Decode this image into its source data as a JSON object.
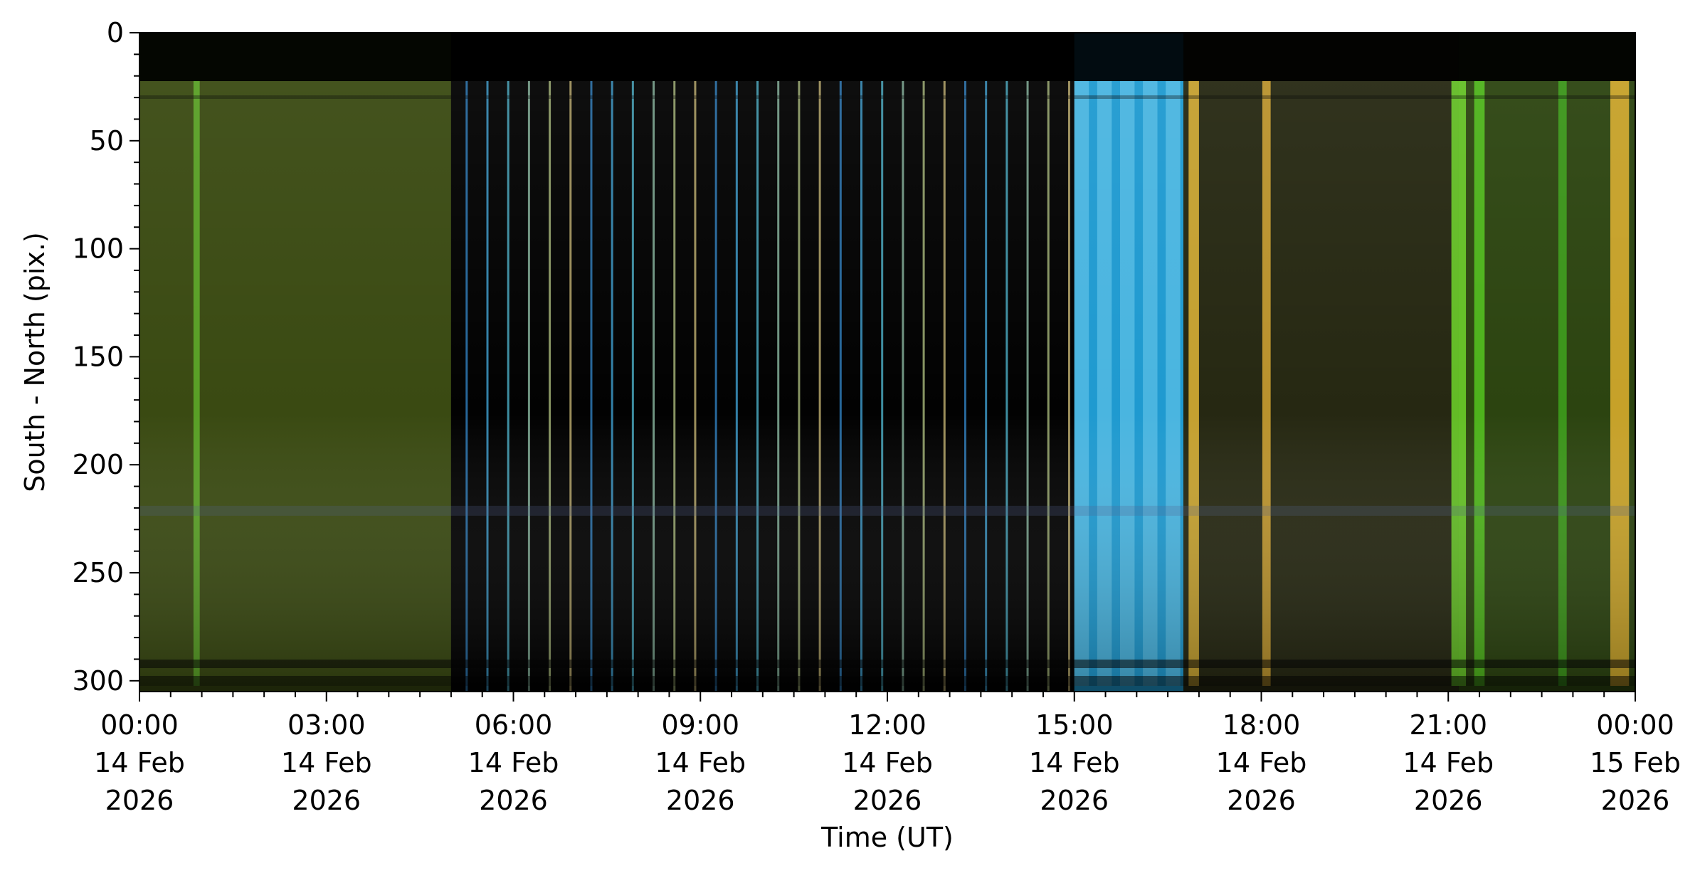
{
  "chart_data": {
    "type": "heatmap",
    "title": "",
    "xlabel": "Time (UT)",
    "ylabel": "South - North (pix.)",
    "ylim": [
      305,
      0
    ],
    "xlim": [
      "2026-02-14T00:00",
      "2026-02-15T00:00"
    ],
    "y_ticks": [
      0,
      50,
      100,
      150,
      200,
      250,
      300
    ],
    "x_ticks": [
      {
        "time": "2026-02-14T00:00",
        "lines": [
          "00:00",
          "14 Feb",
          "2026"
        ]
      },
      {
        "time": "2026-02-14T03:00",
        "lines": [
          "03:00",
          "14 Feb",
          "2026"
        ]
      },
      {
        "time": "2026-02-14T06:00",
        "lines": [
          "06:00",
          "14 Feb",
          "2026"
        ]
      },
      {
        "time": "2026-02-14T09:00",
        "lines": [
          "09:00",
          "14 Feb",
          "2026"
        ]
      },
      {
        "time": "2026-02-14T12:00",
        "lines": [
          "12:00",
          "14 Feb",
          "2026"
        ]
      },
      {
        "time": "2026-02-14T15:00",
        "lines": [
          "15:00",
          "14 Feb",
          "2026"
        ]
      },
      {
        "time": "2026-02-14T18:00",
        "lines": [
          "18:00",
          "14 Feb",
          "2026"
        ]
      },
      {
        "time": "2026-02-14T21:00",
        "lines": [
          "21:00",
          "14 Feb",
          "2026"
        ]
      },
      {
        "time": "2026-02-15T00:00",
        "lines": [
          "00:00",
          "15 Feb",
          "2026"
        ]
      }
    ],
    "x_minor_tick_minutes": 30,
    "y_minor_tick_step": 10,
    "segments": [
      {
        "start": "00:00",
        "end": "05:00",
        "color": "#3a4a12",
        "description": "dim green/yellow aurora"
      },
      {
        "start": "05:00",
        "end": "15:00",
        "color": "#020202",
        "description": "dark with periodic bright streaks"
      },
      {
        "start": "15:00",
        "end": "16:45",
        "color": "#1f9ad0",
        "description": "bright cyan twilight"
      },
      {
        "start": "16:45",
        "end": "21:10",
        "color": "#262812",
        "description": "dim with yellow bands"
      },
      {
        "start": "21:10",
        "end": "24:00",
        "color": "#2c4410",
        "description": "green aurora"
      }
    ],
    "bright_columns": [
      {
        "time": "00:55",
        "color": "#5fae2a",
        "width_min": 6
      },
      {
        "time": "16:55",
        "color": "#e0b536",
        "width_min": 10
      },
      {
        "time": "18:05",
        "color": "#d3a532",
        "width_min": 8
      },
      {
        "time": "21:10",
        "color": "#6fd52a",
        "width_min": 14
      },
      {
        "time": "21:30",
        "color": "#55c51e",
        "width_min": 10
      },
      {
        "time": "22:50",
        "color": "#3ea21c",
        "width_min": 8
      },
      {
        "time": "23:45",
        "color": "#e2b12e",
        "width_min": 18
      }
    ],
    "colormap": "rgb keogram"
  }
}
